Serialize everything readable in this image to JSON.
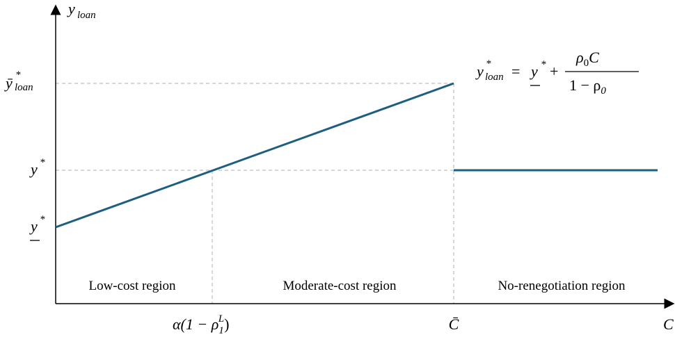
{
  "axes": {
    "y_label": {
      "base": "y",
      "sub": "loan"
    },
    "x_label": "C"
  },
  "y_ticks": [
    {
      "base": "ȳ",
      "sup": "*",
      "sub": "loan"
    },
    {
      "base": "y",
      "sup": "*"
    },
    {
      "base": "y",
      "sup": "*"
    }
  ],
  "x_ticks": [
    {
      "base": "α(1 − ρ",
      "sub": "1",
      "sup": "L",
      "tail": ")"
    },
    {
      "base": "C̄"
    }
  ],
  "equation": {
    "lhs_base": "y",
    "lhs_sup": "*",
    "lhs_sub": "loan",
    "middle": "=",
    "rhs_base": "y",
    "rhs_sup": "*",
    "plus": "+",
    "numerator_base": "ρ",
    "numerator_sub": "0",
    "numerator_tail": "C",
    "denominator_base": "1 − ρ",
    "denominator_sub": "0"
  },
  "regions": [
    "Low-cost region",
    "Moderate-cost region",
    "No-renegotiation region"
  ]
}
